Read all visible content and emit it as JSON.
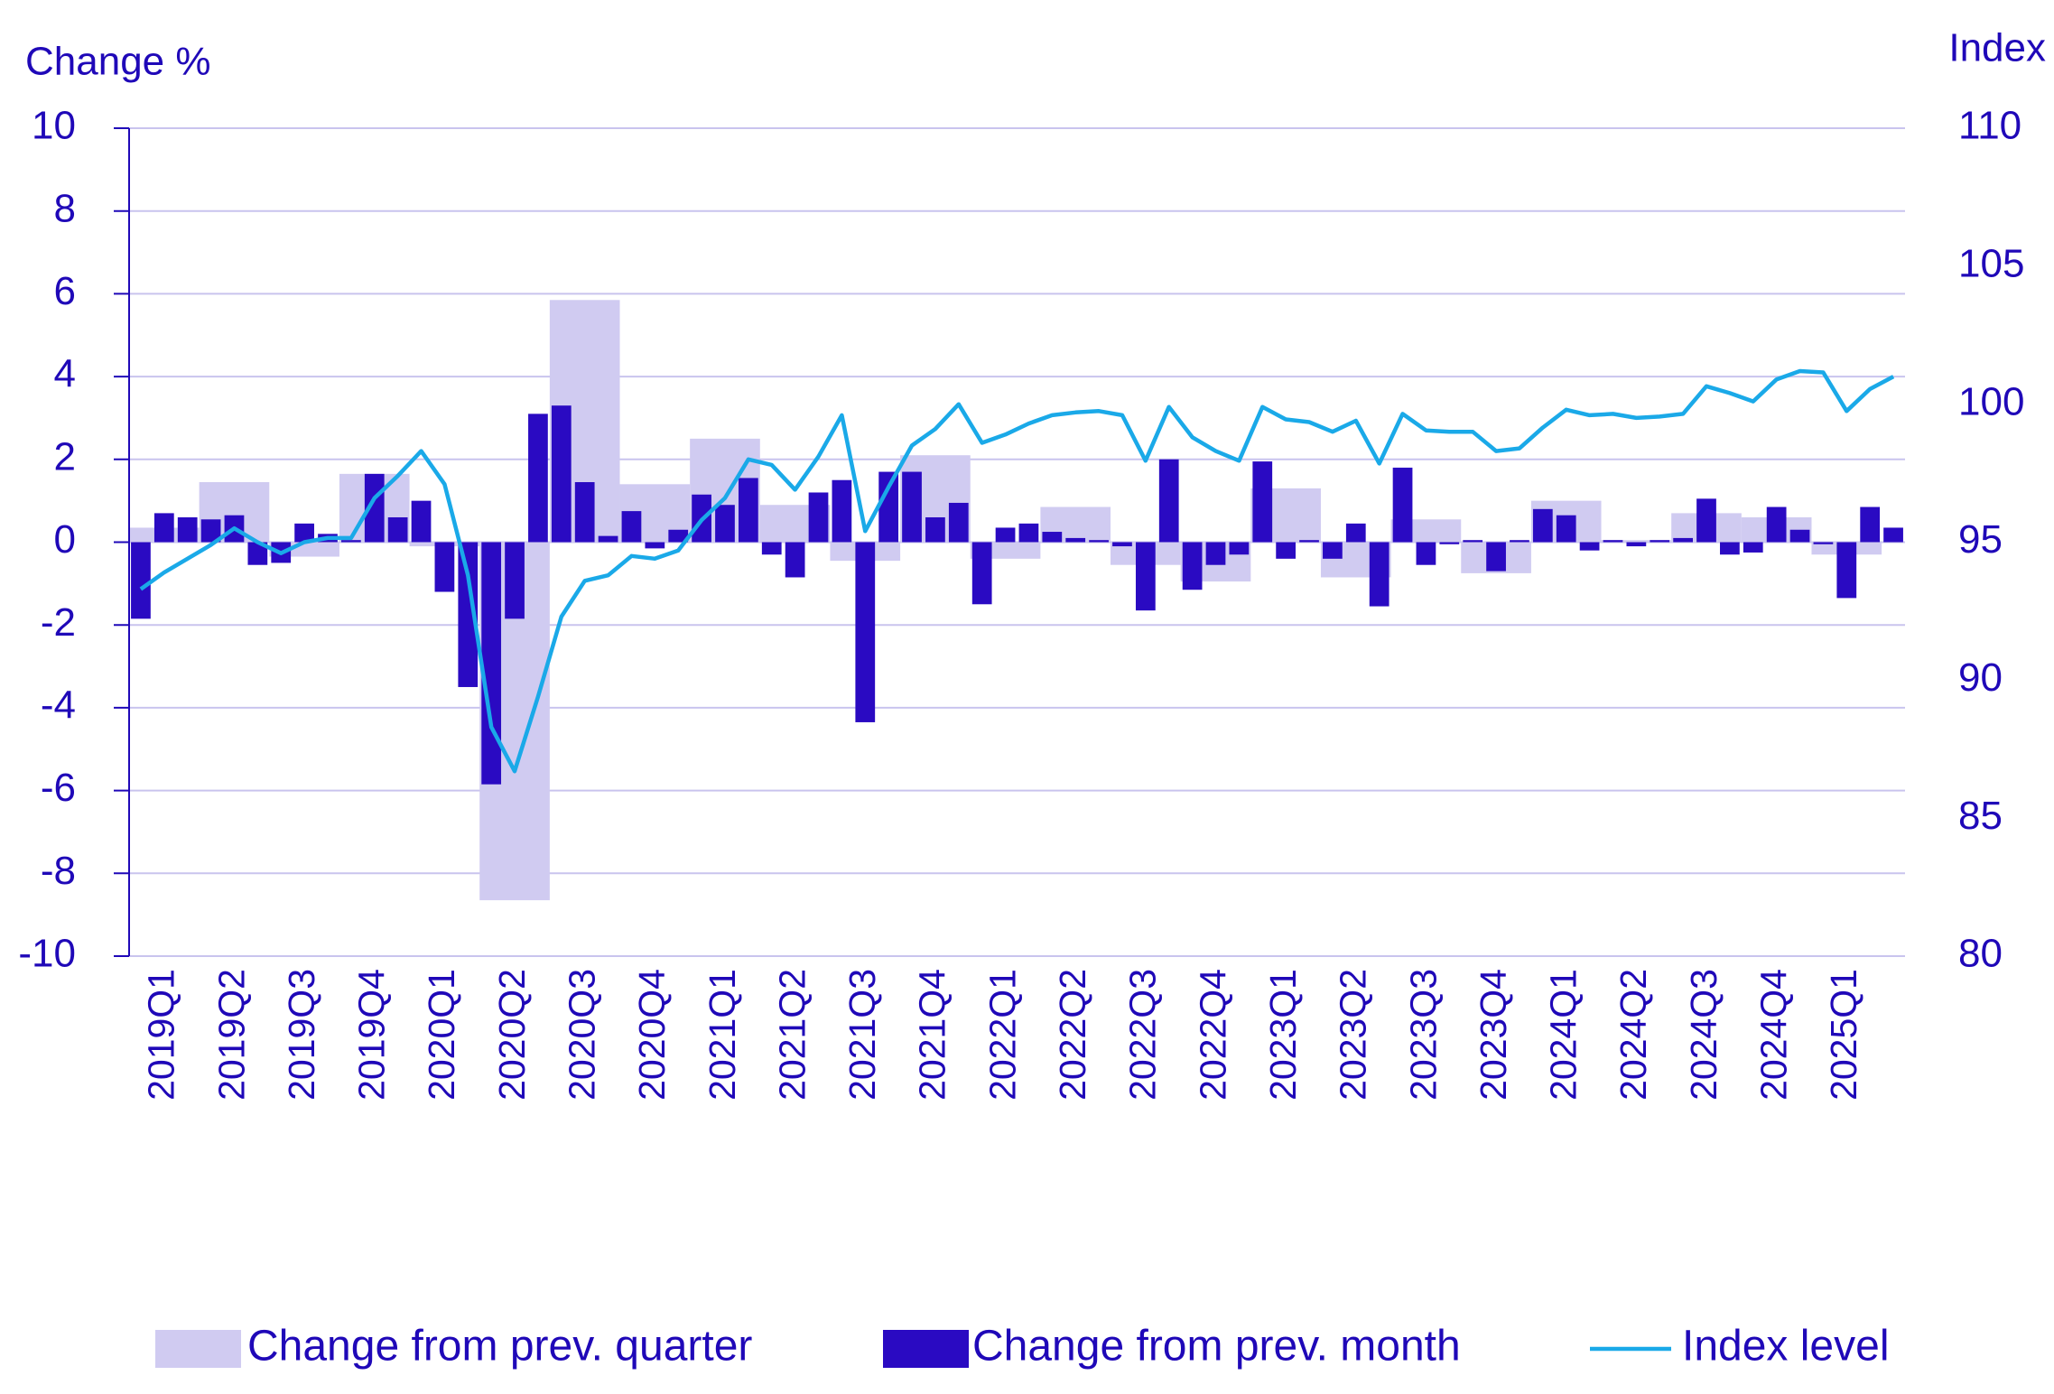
{
  "chart_data": {
    "type": "combo",
    "y_title": "Change %",
    "y2_title": "Index",
    "categories": [
      null,
      "2019Q1",
      null,
      null,
      "2019Q2",
      null,
      null,
      "2019Q3",
      null,
      null,
      "2019Q4",
      null,
      null,
      "2020Q1",
      null,
      null,
      "2020Q2",
      null,
      null,
      "2020Q3",
      null,
      null,
      "2020Q4",
      null,
      null,
      "2021Q1",
      null,
      null,
      "2021Q2",
      null,
      null,
      "2021Q3",
      null,
      null,
      "2021Q4",
      null,
      null,
      "2022Q1",
      null,
      null,
      "2022Q2",
      null,
      null,
      "2022Q3",
      null,
      null,
      "2022Q4",
      null,
      null,
      "2023Q1",
      null,
      null,
      "2023Q2",
      null,
      null,
      "2023Q3",
      null,
      null,
      "2023Q4",
      null,
      null,
      "2024Q1",
      null,
      null,
      "2024Q2",
      null,
      null,
      "2024Q3",
      null,
      null,
      "2024Q4",
      null,
      null,
      "2025Q1",
      null,
      null
    ],
    "series": [
      {
        "name": "Change from prev. quarter",
        "type": "quarter-bar",
        "color": "#d0cbf1",
        "values": [
          null,
          0.35,
          null,
          null,
          1.45,
          null,
          null,
          -0.35,
          null,
          null,
          1.65,
          null,
          null,
          -0.1,
          null,
          null,
          -8.65,
          null,
          null,
          5.85,
          null,
          null,
          1.4,
          null,
          null,
          2.5,
          null,
          null,
          0.9,
          null,
          null,
          -0.45,
          null,
          null,
          2.1,
          null,
          null,
          -0.4,
          null,
          null,
          0.85,
          null,
          null,
          -0.55,
          null,
          null,
          -0.95,
          null,
          null,
          1.3,
          null,
          null,
          -0.85,
          null,
          null,
          0.55,
          null,
          null,
          -0.75,
          null,
          null,
          1.0,
          null,
          null,
          0.05,
          null,
          null,
          0.7,
          null,
          null,
          0.6,
          null,
          null,
          -0.3,
          null,
          null
        ]
      },
      {
        "name": "Change from prev. month",
        "type": "bar",
        "color": "#2a0ac2",
        "values": [
          -1.85,
          0.7,
          0.6,
          0.55,
          0.65,
          -0.55,
          -0.5,
          0.45,
          0.2,
          0.05,
          1.65,
          0.6,
          1.0,
          -1.2,
          -3.5,
          -5.85,
          -1.85,
          3.1,
          3.3,
          1.45,
          0.15,
          0.75,
          -0.15,
          0.3,
          1.15,
          0.9,
          1.55,
          -0.3,
          -0.85,
          1.2,
          1.5,
          -4.35,
          1.7,
          1.7,
          0.6,
          0.95,
          -1.5,
          0.35,
          0.45,
          0.25,
          0.1,
          0.05,
          -0.1,
          -1.65,
          2.0,
          -1.15,
          -0.55,
          -0.3,
          1.95,
          -0.4,
          0.05,
          -0.4,
          0.45,
          -1.55,
          1.8,
          -0.55,
          -0.05,
          0.05,
          -0.7,
          0.05,
          0.8,
          0.65,
          -0.2,
          0.05,
          -0.1,
          0.05,
          0.1,
          1.05,
          -0.3,
          -0.25,
          0.85,
          0.3,
          -0.05,
          -1.35,
          0.85,
          0.35
        ]
      },
      {
        "name": "Index level",
        "type": "line",
        "axis": "y2",
        "color": "#1aa9e8",
        "values": [
          93.3,
          93.9,
          94.4,
          94.9,
          95.5,
          95.0,
          94.6,
          95.0,
          95.15,
          95.15,
          96.6,
          97.4,
          98.3,
          97.1,
          93.8,
          88.3,
          86.7,
          89.4,
          92.3,
          93.6,
          93.8,
          94.5,
          94.4,
          94.7,
          95.8,
          96.6,
          98.0,
          97.8,
          96.9,
          98.1,
          99.6,
          95.4,
          97.0,
          98.5,
          99.1,
          100.0,
          98.6,
          98.9,
          99.3,
          99.6,
          99.7,
          99.75,
          99.6,
          97.95,
          99.9,
          98.8,
          98.3,
          97.95,
          99.9,
          99.45,
          99.35,
          99.0,
          99.4,
          97.85,
          99.65,
          99.05,
          99.0,
          99.0,
          98.3,
          98.4,
          99.15,
          99.8,
          99.6,
          99.65,
          99.5,
          99.55,
          99.65,
          100.65,
          100.4,
          100.1,
          100.9,
          101.2,
          101.15,
          99.75,
          100.55,
          101.0
        ]
      }
    ],
    "ylim": [
      -10,
      10
    ],
    "yticks": [
      -10,
      -8,
      -6,
      -4,
      -2,
      0,
      2,
      4,
      6,
      8,
      10
    ],
    "y2lim": [
      80,
      110
    ],
    "y2ticks": [
      80,
      85,
      90,
      95,
      100,
      105,
      110
    ],
    "grid": true,
    "legend": "bottom"
  }
}
